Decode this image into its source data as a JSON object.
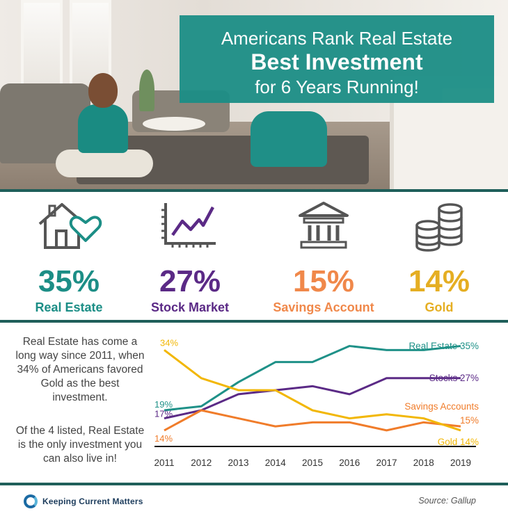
{
  "header": {
    "line1": "Americans Rank Real Estate",
    "line2": "Best Investment",
    "line3": "for 6 Years Running!"
  },
  "stats": [
    {
      "value": "35%",
      "label": "Real Estate",
      "color": "#1c8e86",
      "icon": "house-heart-icon"
    },
    {
      "value": "27%",
      "label": "Stock Market",
      "color": "#5b2a86",
      "icon": "stock-chart-icon"
    },
    {
      "value": "15%",
      "label": "Savings Account",
      "color": "#f0884a",
      "icon": "bank-icon"
    },
    {
      "value": "14%",
      "label": "Gold",
      "color": "#e5ae22",
      "icon": "coin-stack-icon"
    }
  ],
  "note": {
    "paragraph1": "Real Estate has come a long way since 2011, when 34% of Americans favored Gold as the best investment.",
    "paragraph2": "Of the 4 listed, Real Estate is the only investment you can also live in!"
  },
  "chart_data": {
    "type": "line",
    "x": [
      "2011",
      "2012",
      "2013",
      "2014",
      "2015",
      "2016",
      "2017",
      "2018",
      "2019"
    ],
    "ylim": [
      10,
      37
    ],
    "grid": false,
    "series": [
      {
        "name": "Real Estate",
        "color": "#1f9188",
        "values": [
          19,
          20,
          26,
          31,
          31,
          35,
          34,
          34,
          35
        ],
        "end_label": "Real Estate 35%",
        "start_label": "19%"
      },
      {
        "name": "Stocks",
        "color": "#5b2a86",
        "values": [
          17,
          19,
          23,
          24,
          25,
          23,
          27,
          27,
          27
        ],
        "end_label": "Stocks 27%",
        "start_label": "17%"
      },
      {
        "name": "Savings Accounts",
        "color": "#f07c2a",
        "values": [
          14,
          19,
          17,
          15,
          16,
          16,
          14,
          16,
          15
        ],
        "end_label": "Savings Accounts",
        "end_label_value": "15%",
        "start_label": "14%"
      },
      {
        "name": "Gold",
        "color": "#f2b705",
        "values": [
          34,
          27,
          24,
          24,
          19,
          17,
          18,
          17,
          14
        ],
        "end_label": "Gold 14%",
        "start_label": "34%"
      }
    ]
  },
  "footer": {
    "logo_text": "Keeping Current Matters",
    "source": "Source: Gallup"
  }
}
